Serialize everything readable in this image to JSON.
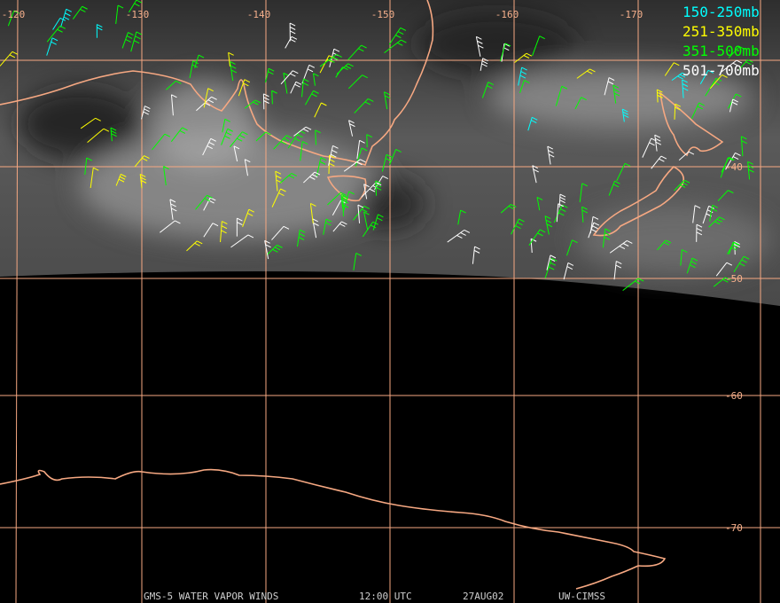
{
  "map": {
    "lon_labels": [
      "-120",
      "-130",
      "-140",
      "-150",
      "-160",
      "-170"
    ],
    "lat_labels": [
      "-40",
      "-50",
      "-60",
      "-70"
    ],
    "legend": [
      {
        "label": "150-250mb",
        "color": "#00ffff"
      },
      {
        "label": "251-350mb",
        "color": "#ffff00"
      },
      {
        "label": "351-500mb",
        "color": "#00ff00"
      },
      {
        "label": "501-700mb",
        "color": "#ffffff"
      }
    ],
    "footer": [
      "GMS-5 WATER VAPOR WINDS",
      "12:00 UTC",
      "27AUG02",
      "UW-CIMSS"
    ]
  }
}
